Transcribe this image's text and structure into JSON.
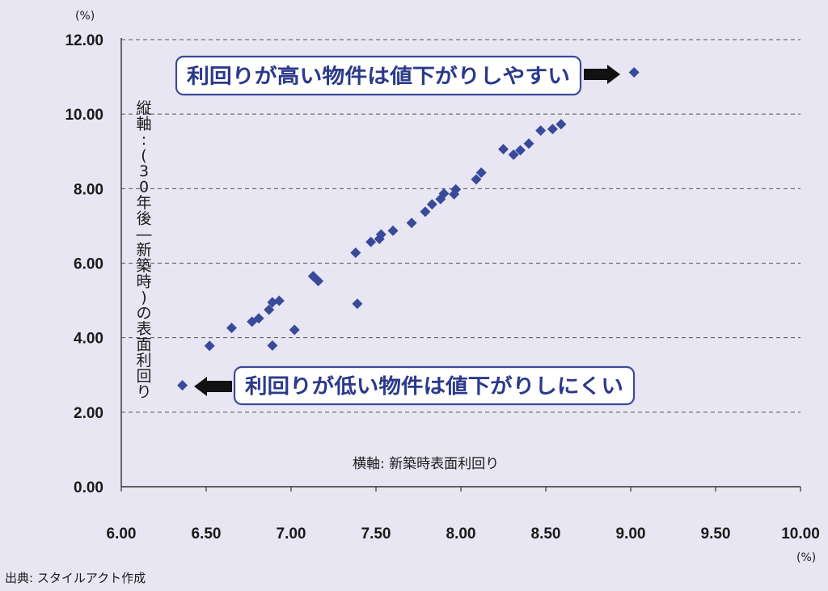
{
  "chart_data": {
    "type": "scatter",
    "xlim": [
      6.0,
      10.0
    ],
    "ylim": [
      0.0,
      12.0
    ],
    "x_ticks": [
      "6.00",
      "6.50",
      "7.00",
      "7.50",
      "8.00",
      "8.50",
      "9.00",
      "9.50",
      "10.00"
    ],
    "y_ticks": [
      "0.00",
      "2.00",
      "4.00",
      "6.00",
      "8.00",
      "10.00",
      "12.00"
    ],
    "x_unit": "(%)",
    "y_unit": "(%)",
    "xlabel": "横軸: 新築時表面利回り",
    "ylabel": "縦軸:(30年後―新築時)の表面利回り",
    "grid": "horizontal-dashed",
    "marker": "diamond",
    "marker_color": "#3a4a9a",
    "points": [
      [
        6.36,
        2.72
      ],
      [
        6.52,
        3.78
      ],
      [
        6.65,
        4.26
      ],
      [
        6.77,
        4.43
      ],
      [
        6.81,
        4.52
      ],
      [
        6.87,
        4.75
      ],
      [
        6.89,
        4.95
      ],
      [
        6.93,
        4.99
      ],
      [
        6.89,
        3.79
      ],
      [
        7.02,
        4.21
      ],
      [
        7.13,
        5.65
      ],
      [
        7.16,
        5.52
      ],
      [
        7.38,
        6.28
      ],
      [
        7.39,
        4.91
      ],
      [
        7.47,
        6.57
      ],
      [
        7.52,
        6.65
      ],
      [
        7.53,
        6.77
      ],
      [
        7.6,
        6.87
      ],
      [
        7.71,
        7.08
      ],
      [
        7.79,
        7.38
      ],
      [
        7.83,
        7.58
      ],
      [
        7.88,
        7.72
      ],
      [
        7.9,
        7.87
      ],
      [
        7.96,
        7.85
      ],
      [
        7.97,
        7.98
      ],
      [
        8.09,
        8.25
      ],
      [
        8.12,
        8.43
      ],
      [
        8.25,
        9.06
      ],
      [
        8.31,
        8.91
      ],
      [
        8.35,
        9.03
      ],
      [
        8.4,
        9.21
      ],
      [
        8.47,
        9.56
      ],
      [
        8.54,
        9.6
      ],
      [
        8.59,
        9.73
      ],
      [
        9.02,
        11.12
      ]
    ],
    "annotations": [
      {
        "text": "利回りが高い物件は値下がりしやすい",
        "arrow": "right"
      },
      {
        "text": "利回りが低い物件は値下がりしにくい",
        "arrow": "left"
      }
    ]
  },
  "source": "出典: スタイルアクト作成"
}
